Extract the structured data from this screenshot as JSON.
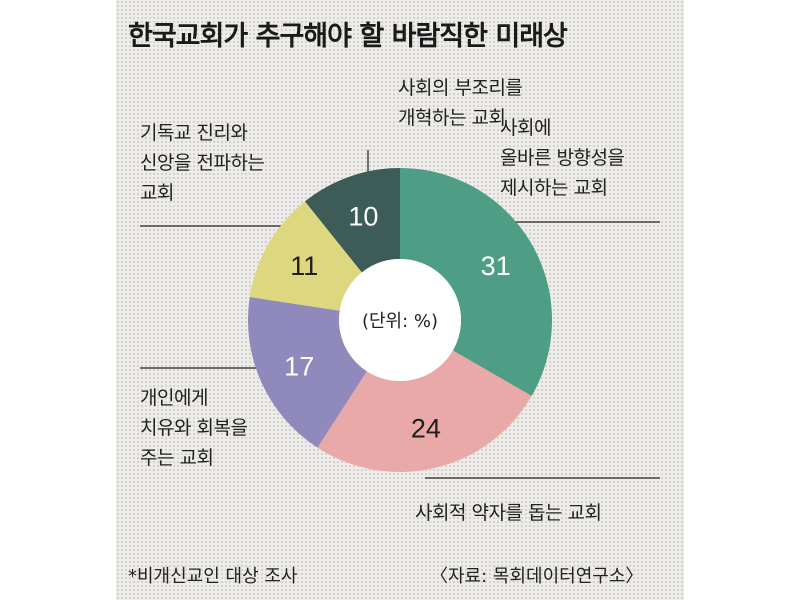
{
  "chart_data": {
    "type": "donut",
    "title": "한국교회가 추구해야 할 바람직한 미래상",
    "center_label": "(단위: %)",
    "slices": [
      {
        "label": "사회에\n올바른 방향성을\n제시하는 교회",
        "value": 31,
        "color": "#4e9e86"
      },
      {
        "label": "사회적 약자를 돕는 교회",
        "value": 24,
        "color": "#e9a9a9"
      },
      {
        "label": "개인에게\n치유와 회복을\n주는 교회",
        "value": 17,
        "color": "#8f89bc"
      },
      {
        "label": "기독교 진리와\n신앙을 전파하는\n교회",
        "value": 11,
        "color": "#ddd77f"
      },
      {
        "label": "사회의 부조리를\n개혁하는 교회",
        "value": 10,
        "color": "#3d5c58"
      }
    ]
  },
  "footer": {
    "note": "*비개신교인 대상 조사",
    "source": "〈자료: 목회데이터연구소〉"
  }
}
